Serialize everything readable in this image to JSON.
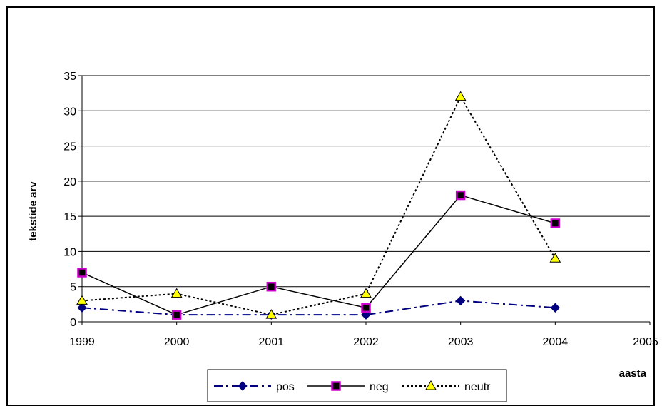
{
  "chart_data": {
    "type": "line",
    "title": "",
    "xlabel": "aasta",
    "ylabel": "tekstide arv",
    "x": [
      1999,
      2000,
      2001,
      2002,
      2003,
      2004
    ],
    "xlim": [
      1999,
      2005
    ],
    "x_ticks": [
      "1999",
      "2000",
      "2001",
      "2002",
      "2003",
      "2004",
      "2005"
    ],
    "ylim": [
      0,
      35
    ],
    "y_ticks": [
      "0",
      "5",
      "10",
      "15",
      "20",
      "25",
      "30",
      "35"
    ],
    "grid": "horizontal",
    "legend_position": "bottom",
    "series": [
      {
        "name": "pos",
        "values": [
          2,
          1,
          1,
          1,
          3,
          2
        ],
        "color": "#000080",
        "marker": "diamond",
        "marker_fill": "#000080",
        "line_style": "dash-dot"
      },
      {
        "name": "neg",
        "values": [
          7,
          1,
          5,
          2,
          18,
          14
        ],
        "color": "#000000",
        "marker": "square",
        "marker_fill": "#000000",
        "marker_edge": "#cc00cc",
        "line_style": "solid"
      },
      {
        "name": "neutr",
        "values": [
          3,
          4,
          1,
          4,
          32,
          9
        ],
        "color": "#000000",
        "marker": "triangle",
        "marker_fill": "#ffff00",
        "line_style": "dotted"
      }
    ]
  }
}
